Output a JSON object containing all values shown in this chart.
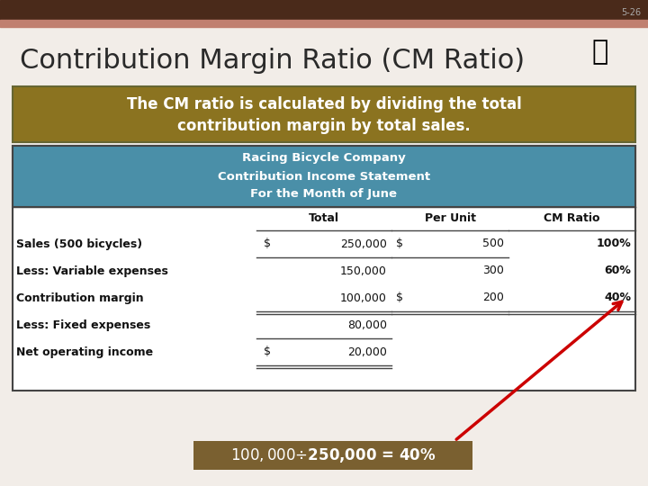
{
  "slide_number": "5-26",
  "title": "Contribution Margin Ratio (CM Ratio)",
  "title_fontsize": 22,
  "title_color": "#2a2a2a",
  "background_color": "#f2ede8",
  "top_bar_color1": "#4a2a1a",
  "top_bar_color2": "#c08070",
  "header_bar_color": "#8b7320",
  "header_bar_text_line1": "The CM ratio is calculated by dividing the total",
  "header_bar_text_line2": "contribution margin by total sales.",
  "header_bar_text_color": "#ffffff",
  "table_header_bg": "#4a8fa8",
  "table_header_text_color": "#ffffff",
  "table_border_color": "#444444",
  "company_name": "Racing Bicycle Company",
  "income_statement": "Contribution Income Statement",
  "period": "For the Month of June",
  "formula_box_text": "$100,000 ÷ $250,000 = 40%",
  "formula_box_bg": "#7a6030",
  "formula_box_text_color": "#ffffff",
  "arrow_color": "#cc0000",
  "slide_num_color": "#aaaaaa",
  "white": "#ffffff",
  "black": "#111111"
}
